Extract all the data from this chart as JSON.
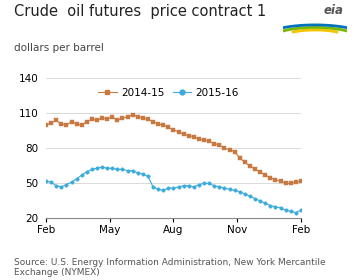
{
  "title": "Crude  oil futures  price contract 1",
  "subtitle": "dollars per barrel",
  "source": "Source: U.S. Energy Information Administration, New York Mercantile\nExchange (NYMEX)",
  "ylim": [
    20,
    140
  ],
  "yticks": [
    20,
    50,
    80,
    110,
    140
  ],
  "xtick_labels": [
    "Feb",
    "May",
    "Aug",
    "Nov",
    "Feb"
  ],
  "xtick_positions": [
    0.0,
    0.25,
    0.5,
    0.75,
    1.0
  ],
  "series_2014": {
    "label": "2014-15",
    "color": "#c87941",
    "marker": "s",
    "y": [
      100,
      102,
      104,
      101,
      100,
      103,
      101,
      100,
      103,
      105,
      104,
      106,
      105,
      107,
      104,
      106,
      107,
      109,
      107,
      106,
      105,
      103,
      101,
      100,
      98,
      96,
      94,
      92,
      91,
      90,
      88,
      87,
      86,
      84,
      83,
      80,
      79,
      77,
      72,
      68,
      65,
      62,
      60,
      57,
      55,
      53,
      52,
      50,
      50,
      51,
      52
    ]
  },
  "series_2015": {
    "label": "2015-16",
    "color": "#3aabdb",
    "marker": "o",
    "y": [
      52,
      51,
      48,
      47,
      49,
      51,
      54,
      57,
      60,
      62,
      63,
      64,
      63,
      63,
      62,
      62,
      61,
      61,
      59,
      58,
      56,
      47,
      45,
      44,
      46,
      46,
      47,
      48,
      48,
      47,
      49,
      50,
      50,
      48,
      47,
      46,
      45,
      44,
      43,
      41,
      39,
      37,
      35,
      33,
      31,
      30,
      29,
      27,
      26,
      25,
      27
    ]
  },
  "background_color": "#ffffff",
  "grid_color": "#cccccc",
  "title_fontsize": 10.5,
  "subtitle_fontsize": 7.5,
  "source_fontsize": 6.5,
  "tick_fontsize": 7.5,
  "legend_fontsize": 7.5
}
